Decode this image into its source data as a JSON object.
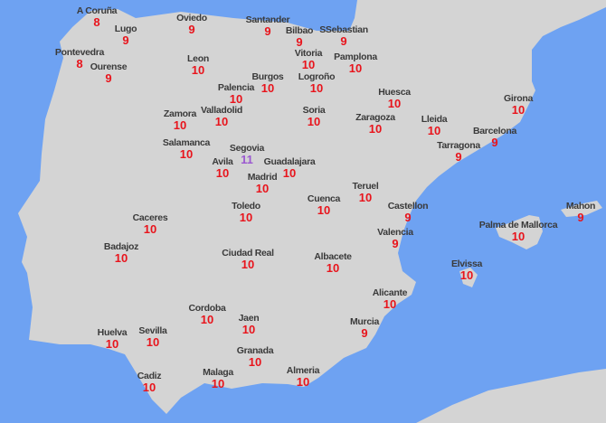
{
  "map": {
    "colors": {
      "sea": "#6ea2f2",
      "land": "#d4d4d4",
      "label": "#3a3a3a",
      "value": "#e8141c",
      "value_high": "#9b59d0"
    },
    "cities": [
      {
        "name": "A Coruña",
        "value": "8"
      },
      {
        "name": "Oviedo",
        "value": "9"
      },
      {
        "name": "Santander",
        "value": "9"
      },
      {
        "name": "Lugo",
        "value": "9"
      },
      {
        "name": "Bilbao",
        "value": "9"
      },
      {
        "name": "SSebastian",
        "value": "9"
      },
      {
        "name": "Pontevedra",
        "value": "8"
      },
      {
        "name": "Ourense",
        "value": "9"
      },
      {
        "name": "Leon",
        "value": "10"
      },
      {
        "name": "Vitoria",
        "value": "10"
      },
      {
        "name": "Pamplona",
        "value": "10"
      },
      {
        "name": "Logroño",
        "value": "10"
      },
      {
        "name": "Burgos",
        "value": "10"
      },
      {
        "name": "Palencia",
        "value": "10"
      },
      {
        "name": "Huesca",
        "value": "10"
      },
      {
        "name": "Girona",
        "value": "10"
      },
      {
        "name": "Valladolid",
        "value": "10"
      },
      {
        "name": "Zamora",
        "value": "10"
      },
      {
        "name": "Soria",
        "value": "10"
      },
      {
        "name": "Zaragoza",
        "value": "10"
      },
      {
        "name": "Lleida",
        "value": "10"
      },
      {
        "name": "Barcelona",
        "value": "9"
      },
      {
        "name": "Tarragona",
        "value": "9"
      },
      {
        "name": "Salamanca",
        "value": "10"
      },
      {
        "name": "Segovia",
        "value": "11"
      },
      {
        "name": "Avila",
        "value": "10"
      },
      {
        "name": "Guadalajara",
        "value": "10"
      },
      {
        "name": "Madrid",
        "value": "10"
      },
      {
        "name": "Teruel",
        "value": "10"
      },
      {
        "name": "Cuenca",
        "value": "10"
      },
      {
        "name": "Castellon",
        "value": "9"
      },
      {
        "name": "Mahon",
        "value": "9"
      },
      {
        "name": "Toledo",
        "value": "10"
      },
      {
        "name": "Caceres",
        "value": "10"
      },
      {
        "name": "Palma de Mallorca",
        "value": "10"
      },
      {
        "name": "Valencia",
        "value": "9"
      },
      {
        "name": "Badajoz",
        "value": "10"
      },
      {
        "name": "Ciudad Real",
        "value": "10"
      },
      {
        "name": "Albacete",
        "value": "10"
      },
      {
        "name": "Elvissa",
        "value": "10"
      },
      {
        "name": "Alicante",
        "value": "10"
      },
      {
        "name": "Cordoba",
        "value": "10"
      },
      {
        "name": "Jaen",
        "value": "10"
      },
      {
        "name": "Murcia",
        "value": "9"
      },
      {
        "name": "Huelva",
        "value": "10"
      },
      {
        "name": "Sevilla",
        "value": "10"
      },
      {
        "name": "Granada",
        "value": "10"
      },
      {
        "name": "Cadiz",
        "value": "10"
      },
      {
        "name": "Malaga",
        "value": "10"
      },
      {
        "name": "Almeria",
        "value": "10"
      }
    ]
  }
}
